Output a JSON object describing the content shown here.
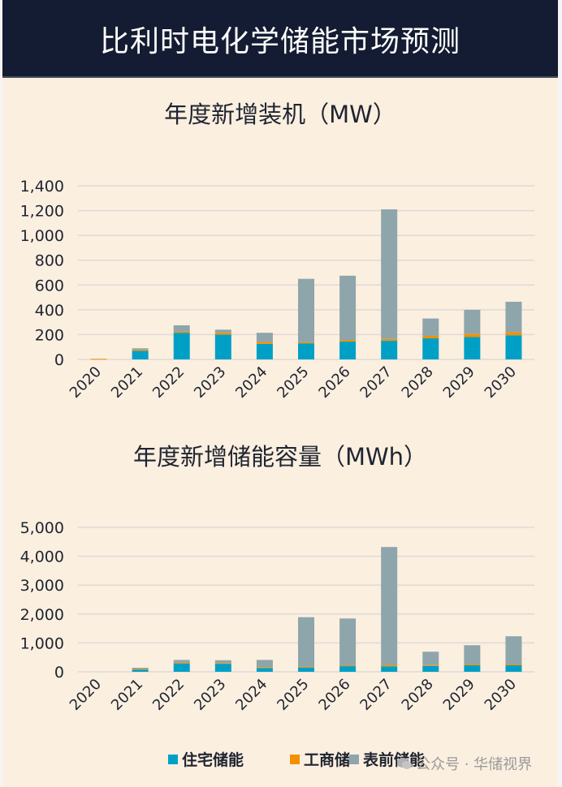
{
  "header": {
    "title": "比利时电化学储能市场预测"
  },
  "colors": {
    "residential": "#00a0c6",
    "commercial": "#f39000",
    "front_of_meter": "#8ea5ab",
    "grid": "#dedad5",
    "axis_text": "#1f2430"
  },
  "legend": [
    {
      "label": "住宅储能",
      "color": "#00a0c6"
    },
    {
      "label": "工商储",
      "color": "#f39000"
    },
    {
      "label": "表前储能",
      "color": "#8ea5ab"
    }
  ],
  "watermark": {
    "text": "公众号 · 华储视界",
    "icon": "wechat-icon"
  },
  "chart_data": [
    {
      "type": "bar",
      "stacked": true,
      "title": "年度新增装机（MW）",
      "xlabel": "",
      "ylabel": "",
      "categories": [
        "2020",
        "2021",
        "2022",
        "2023",
        "2024",
        "2025",
        "2026",
        "2027",
        "2028",
        "2029",
        "2030"
      ],
      "series": [
        {
          "name": "住宅储能",
          "values": [
            0,
            70,
            215,
            200,
            125,
            130,
            145,
            150,
            170,
            180,
            195
          ]
        },
        {
          "name": "工商储",
          "values": [
            5,
            10,
            10,
            15,
            15,
            10,
            12,
            15,
            20,
            25,
            25
          ]
        },
        {
          "name": "表前储能",
          "values": [
            0,
            10,
            50,
            25,
            75,
            510,
            518,
            1045,
            140,
            195,
            245
          ]
        }
      ],
      "ylim": [
        0,
        1400
      ],
      "yticks": [
        0,
        200,
        400,
        600,
        800,
        1000,
        1200,
        1400
      ],
      "ytick_labels": [
        "0",
        "200",
        "400",
        "600",
        "800",
        "1,000",
        "1,200",
        "1,400"
      ],
      "grid": true,
      "legend_position": "bottom"
    },
    {
      "type": "bar",
      "stacked": true,
      "title": "年度新增储能容量（MWh）",
      "xlabel": "",
      "ylabel": "",
      "categories": [
        "2020",
        "2021",
        "2022",
        "2023",
        "2024",
        "2025",
        "2026",
        "2027",
        "2028",
        "2029",
        "2030"
      ],
      "series": [
        {
          "name": "住宅储能",
          "values": [
            0,
            80,
            290,
            280,
            130,
            150,
            195,
            190,
            200,
            225,
            225
          ]
        },
        {
          "name": "工商储",
          "values": [
            0,
            15,
            20,
            20,
            30,
            30,
            30,
            50,
            30,
            40,
            40
          ]
        },
        {
          "name": "表前储能",
          "values": [
            0,
            45,
            100,
            100,
            250,
            1710,
            1620,
            4080,
            465,
            655,
            965
          ]
        }
      ],
      "ylim": [
        0,
        5000
      ],
      "yticks": [
        0,
        1000,
        2000,
        3000,
        4000,
        5000
      ],
      "ytick_labels": [
        "0",
        "1,000",
        "2,000",
        "3,000",
        "4,000",
        "5,000"
      ],
      "grid": true,
      "legend_position": "bottom"
    }
  ]
}
